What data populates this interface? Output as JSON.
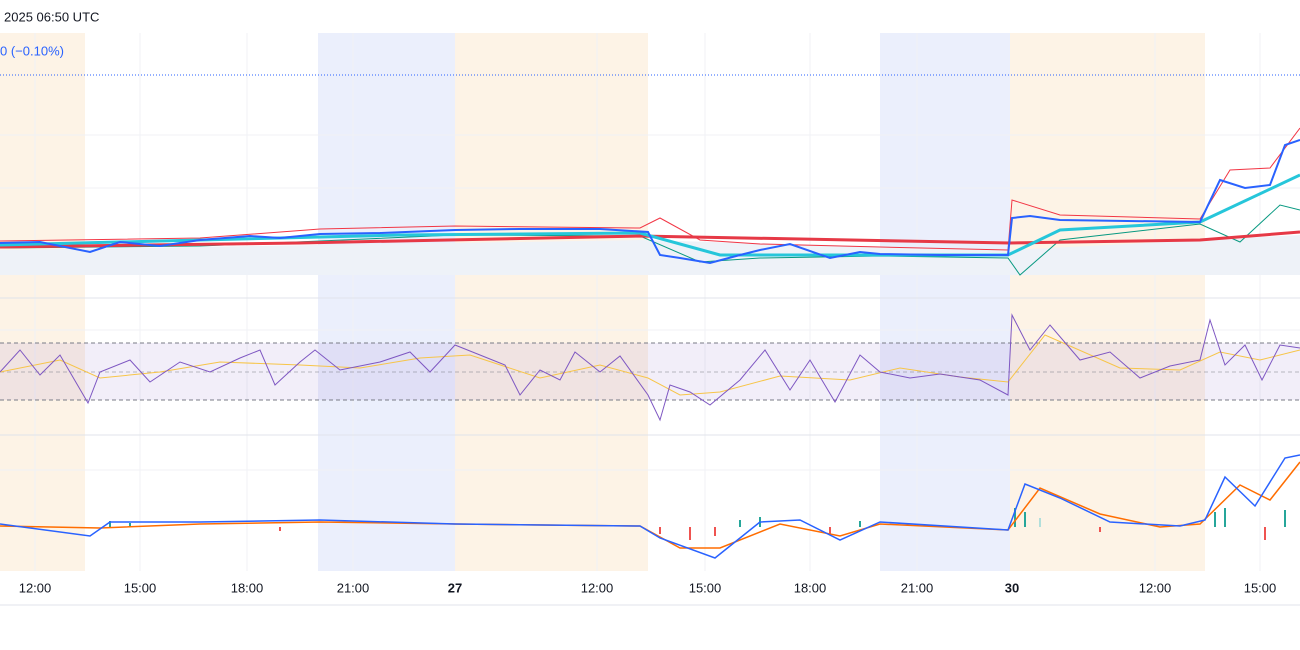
{
  "header": {
    "time": "2025 06:50 UTC",
    "change": "0 (−0.10%)"
  },
  "time_axis": {
    "labels": [
      "12:00",
      "15:00",
      "18:00",
      "21:00",
      "27",
      "12:00",
      "15:00",
      "18:00",
      "21:00",
      "30",
      "12:00",
      "15:00"
    ]
  }
}
